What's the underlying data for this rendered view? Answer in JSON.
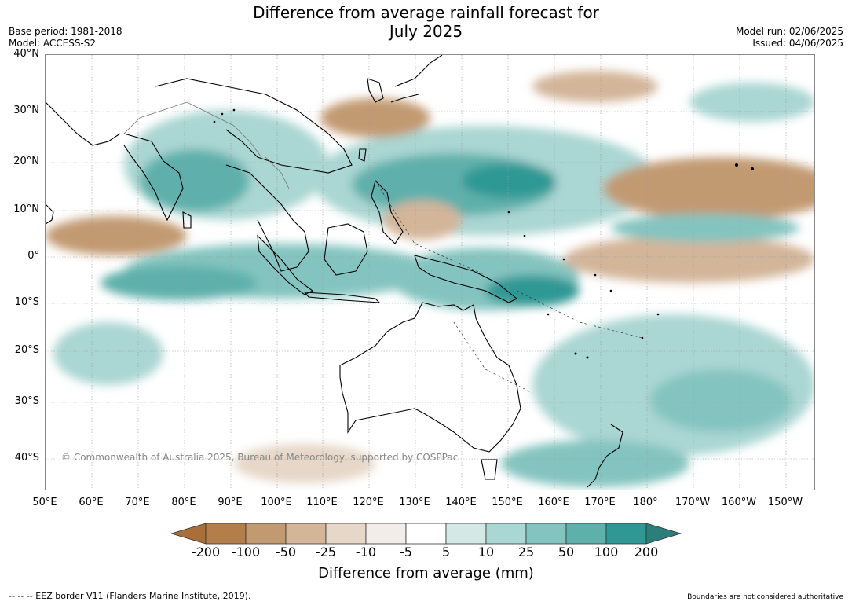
{
  "title_line1": "Difference from average rainfall forecast for",
  "title_line2": "July 2025",
  "base_period": "Base period: 1981-2018",
  "model": "Model: ACCESS-S2",
  "model_run": "Model run: 02/06/2025",
  "issued": "Issued: 04/06/2025",
  "copyright": "© Commonwealth of Australia 2025, Bureau of Meteorology, supported by COSPPac",
  "lat_labels": [
    "40°N",
    "30°N",
    "20°N",
    "10°N",
    "0°",
    "10°S",
    "20°S",
    "30°S",
    "40°S"
  ],
  "lon_labels": [
    "50°E",
    "60°E",
    "70°E",
    "80°E",
    "90°E",
    "100°E",
    "110°E",
    "120°E",
    "130°E",
    "140°E",
    "150°E",
    "160°E",
    "170°E",
    "180°",
    "170°W",
    "160°W",
    "150°W"
  ],
  "colorbar": {
    "ticks": [
      "-200",
      "-100",
      "-50",
      "-25",
      "-10",
      "-5",
      "5",
      "10",
      "25",
      "50",
      "100",
      "200"
    ],
    "colors": [
      "#a86f38",
      "#b47e4a",
      "#c29a72",
      "#d3b59a",
      "#e6d7c8",
      "#f2ede8",
      "#ffffff",
      "#d4e8e6",
      "#aad6d3",
      "#84c4c0",
      "#5eb0ac",
      "#2f9894",
      "#2a7f7c"
    ],
    "label": "Difference from average (mm)"
  },
  "footer_left": "--  --  -- EEZ border V11 (Flanders Marine Institute, 2019).",
  "footer_right": "Boundaries are not considered authoritative"
}
